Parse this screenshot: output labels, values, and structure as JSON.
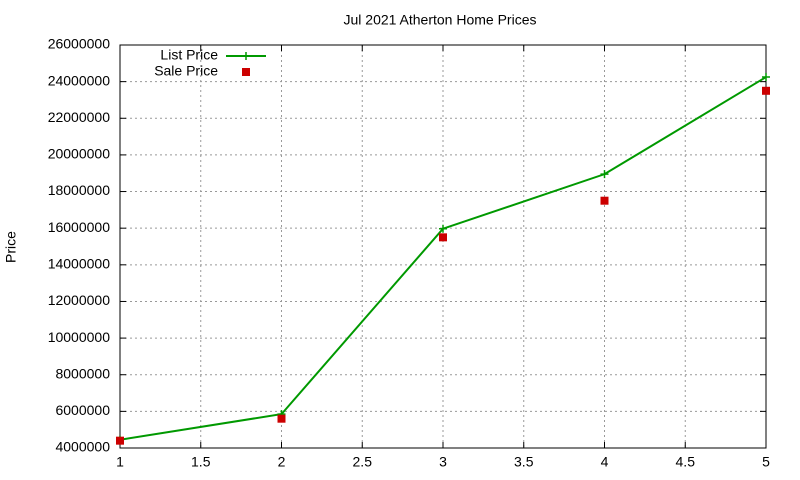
{
  "chart_data": {
    "type": "line",
    "title": "Jul 2021 Atherton Home Prices",
    "y_label": "Price",
    "x": [
      1,
      2,
      3,
      4,
      5
    ],
    "series": [
      {
        "name": "List Price",
        "color": "#009900",
        "style": "linespoints",
        "values": [
          4450000,
          5850000,
          15970000,
          18950000,
          24250000
        ]
      },
      {
        "name": "Sale Price",
        "color": "#cc0000",
        "style": "points",
        "values": [
          4400000,
          5600000,
          15500000,
          17500000,
          23500000
        ]
      }
    ],
    "xlim": [
      1,
      5
    ],
    "xticks": [
      1,
      1.5,
      2,
      2.5,
      3,
      3.5,
      4,
      4.5,
      5
    ],
    "ylim": [
      4000000,
      26000000
    ],
    "yticks": [
      4000000,
      6000000,
      8000000,
      10000000,
      12000000,
      14000000,
      16000000,
      18000000,
      20000000,
      22000000,
      24000000,
      26000000
    ],
    "grid": true,
    "legend": "top-left"
  }
}
